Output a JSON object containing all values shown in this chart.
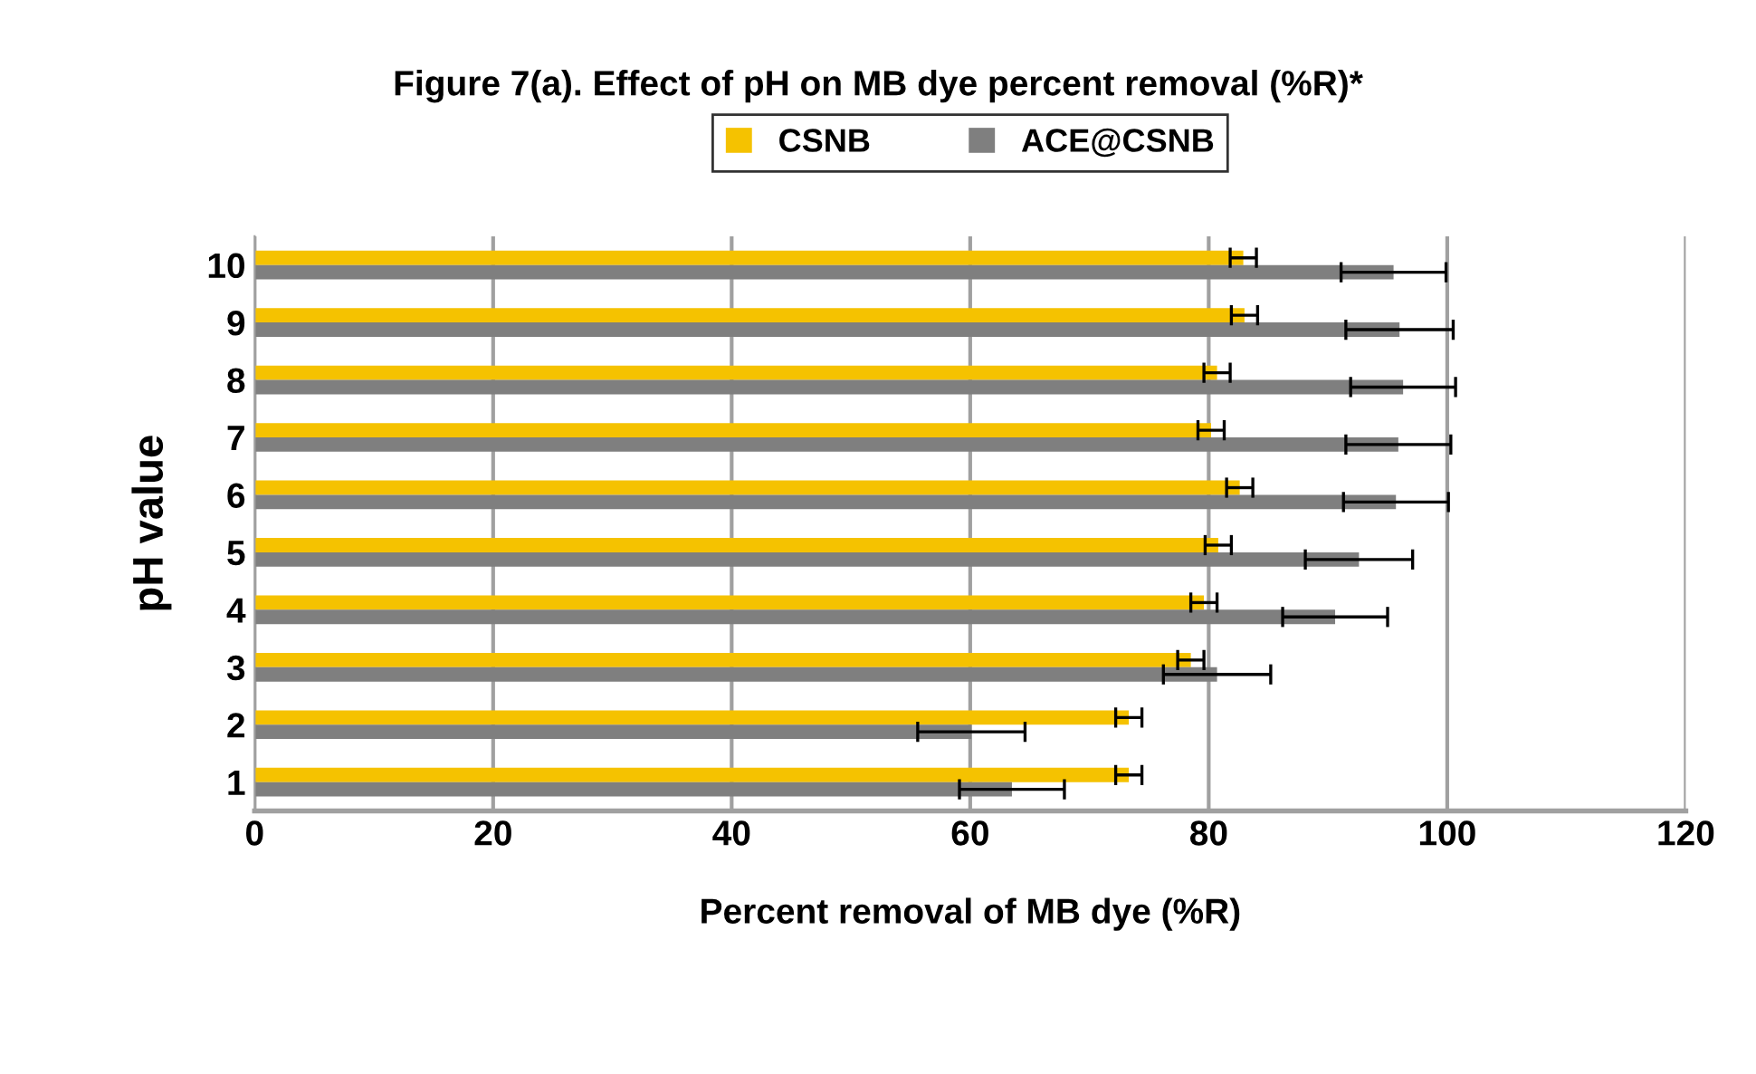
{
  "chart_data": {
    "type": "bar",
    "orientation": "horizontal",
    "title": "Figure 7(a). Effect of pH on MB dye percent removal (%R)*",
    "xlabel": "Percent removal of MB dye (%R)",
    "ylabel": "pH value",
    "categories": [
      "10",
      "9",
      "8",
      "7",
      "6",
      "5",
      "4",
      "3",
      "2",
      "1"
    ],
    "series": [
      {
        "name": "CSNB",
        "color": "#f5c200",
        "values": [
          82.9,
          83.0,
          80.7,
          80.2,
          82.6,
          80.8,
          79.6,
          78.5,
          73.3,
          73.3
        ],
        "errors": [
          1.1,
          1.1,
          1.1,
          1.1,
          1.1,
          1.1,
          1.1,
          1.1,
          1.1,
          1.1
        ]
      },
      {
        "name": "ACE@CSNB",
        "color": "#7f7f7f",
        "values": [
          95.5,
          96.0,
          96.3,
          95.9,
          95.7,
          92.6,
          90.6,
          80.7,
          60.1,
          63.5
        ],
        "errors": [
          4.4,
          4.5,
          4.4,
          4.4,
          4.4,
          4.5,
          4.4,
          4.5,
          4.5,
          4.4
        ]
      }
    ],
    "xlim": [
      0,
      120
    ],
    "xticks": [
      0,
      20,
      40,
      60,
      80,
      100,
      120
    ],
    "grid": "x",
    "legend": "top"
  }
}
